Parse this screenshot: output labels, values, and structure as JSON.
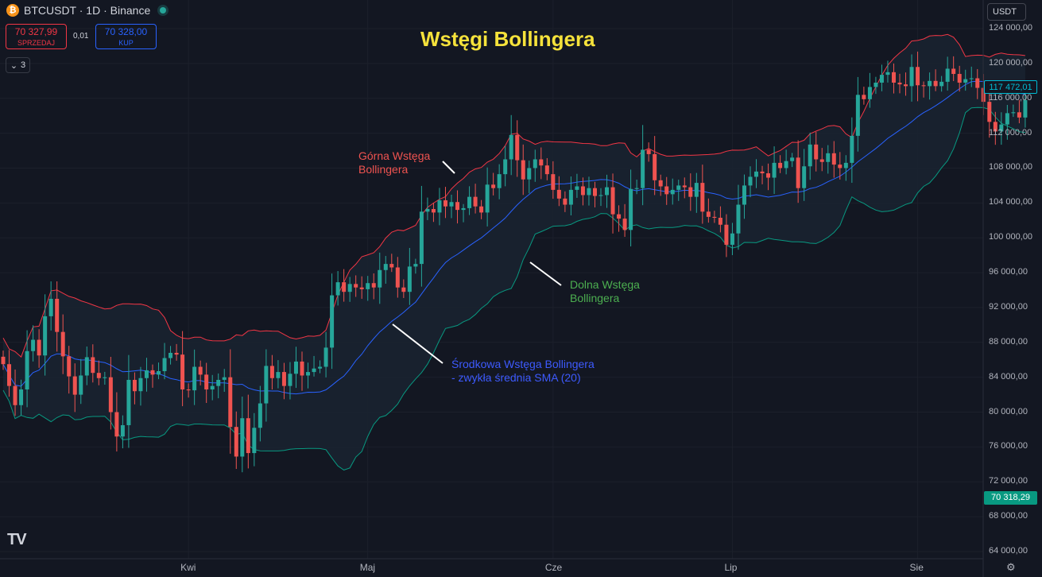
{
  "header": {
    "symbol": "BTCUSDT · 1D · Binance",
    "btc_icon": "bitcoin-icon"
  },
  "trade": {
    "sell_price": "70 327,99",
    "sell_label": "SPRZEDAJ",
    "spread": "0,01",
    "buy_price": "70 328,00",
    "buy_label": "KUP"
  },
  "indicators_toggle": "3",
  "currency": "USDT",
  "price_tags": {
    "last": "117 472,01",
    "current": "70 318,29"
  },
  "x_axis_labels": [
    "Kwi",
    "Maj",
    "Cze",
    "Lip",
    "Sie"
  ],
  "colors": {
    "background": "#131722",
    "up": "#26a69a",
    "down": "#ef5350",
    "upper_band": "#f23645",
    "middle_band": "#2962ff",
    "lower_band": "#26a69a",
    "title": "#f5e23b"
  },
  "chart_data": {
    "type": "candlestick",
    "title": "Wstęgi Bollingera",
    "annotations": [
      {
        "text": [
          "Górna Wstęga",
          "Bollingera"
        ],
        "series": "upper_band"
      },
      {
        "text": [
          "Dolna Wstęga",
          "Bollingera"
        ],
        "series": "lower_band"
      },
      {
        "text": [
          "Środkowa Wstęga Bollingera",
          "- zwykła średnia SMA (20)"
        ],
        "series": "middle_band"
      }
    ],
    "y_axis": {
      "min": 64000,
      "max": 124000,
      "step": 4000,
      "tick_labels": [
        "124 000,00",
        "120 000,00",
        "116 000,00",
        "112 000,00",
        "108 000,00",
        "104 000,00",
        "100 000,00",
        "96 000,00",
        "92 000,00",
        "88 000,00",
        "84 000,00",
        "80 000,00",
        "76 000,00",
        "72 000,00",
        "68 000,00",
        "64 000,00"
      ]
    },
    "months": [
      {
        "label": "Kwi",
        "index": 31
      },
      {
        "label": "Maj",
        "index": 61
      },
      {
        "label": "Cze",
        "index": 92
      },
      {
        "label": "Lip",
        "index": 122
      },
      {
        "label": "Sie",
        "index": 153
      }
    ],
    "close": [
      85500,
      83000,
      80800,
      82600,
      87000,
      88300,
      86500,
      91000,
      93000,
      89200,
      86400,
      84100,
      82000,
      84200,
      86300,
      84500,
      83900,
      84000,
      80000,
      77200,
      78500,
      83700,
      82400,
      83900,
      84800,
      84300,
      84700,
      86200,
      86800,
      86600,
      82600,
      82500,
      85200,
      84300,
      82600,
      83000,
      83700,
      84000,
      78300,
      74900,
      79300,
      75300,
      78200,
      81000,
      85300,
      83900,
      84600,
      83000,
      84400,
      85800,
      84200,
      84600,
      85000,
      85200,
      87400,
      93400,
      94900,
      93800,
      94700,
      94300,
      94100,
      94800,
      94300,
      96300,
      97000,
      96600,
      94300,
      93800,
      96700,
      97000,
      103000,
      103300,
      102900,
      104300,
      103600,
      104100,
      103200,
      103400,
      104700,
      103600,
      102900,
      106100,
      105700,
      107300,
      109000,
      111800,
      108900,
      106700,
      108000,
      109000,
      108300,
      107300,
      105500,
      104500,
      103800,
      105500,
      105900,
      104900,
      105700,
      104800,
      104900,
      105800,
      102700,
      102200,
      100900,
      105600,
      105700,
      110100,
      109600,
      106600,
      105900,
      105000,
      105500,
      106000,
      105800,
      104700,
      106300,
      103000,
      102400,
      102300,
      101500,
      99200,
      100500,
      103800,
      106000,
      107000,
      107600,
      107400,
      106900,
      108600,
      108000,
      108800,
      109200,
      105700,
      108200,
      110700,
      109000,
      108700,
      109700,
      108400,
      108000,
      108600,
      111700,
      116400,
      115900,
      117300,
      117800,
      118700,
      119000,
      117800,
      117600,
      117400,
      119600,
      117500,
      117400,
      118000,
      117400,
      117900,
      119400,
      118800,
      117800,
      118200,
      118300,
      117200,
      115600,
      113300,
      112200,
      113000,
      114300,
      114400,
      113800,
      115800
    ]
  }
}
